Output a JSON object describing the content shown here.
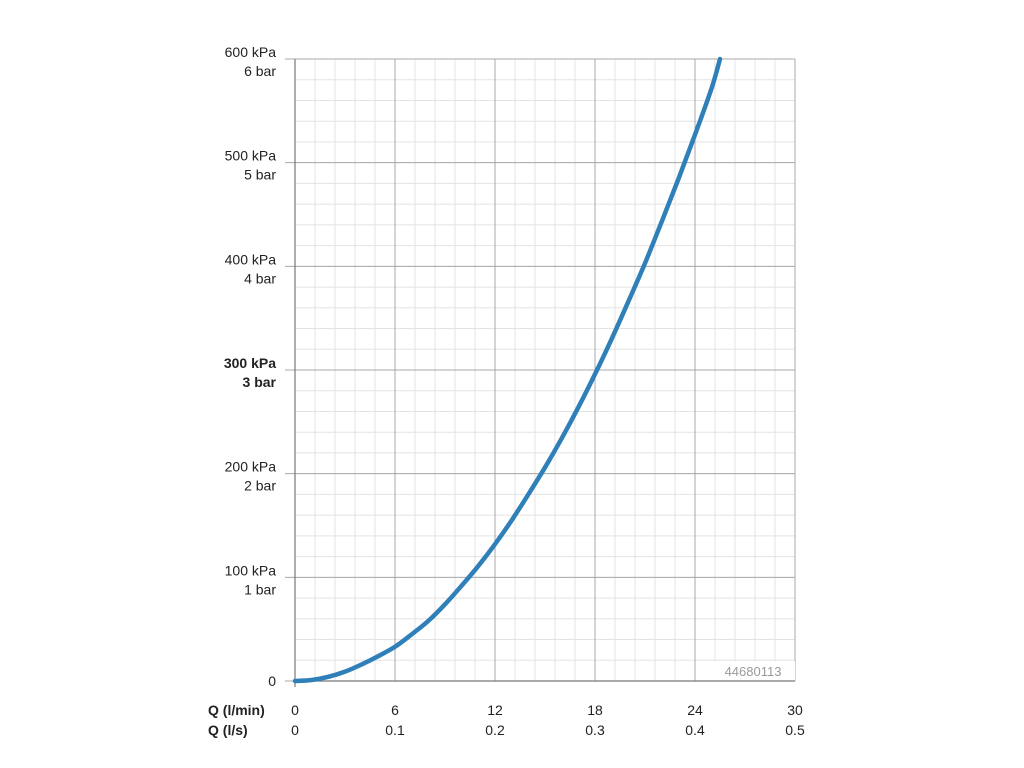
{
  "chart_data": {
    "type": "line",
    "x_axis": {
      "title_primary": "Q (l/min)",
      "title_secondary": "Q (l/s)",
      "ticks": [
        {
          "value": 0,
          "label_primary": "0",
          "label_secondary": "0"
        },
        {
          "value": 6,
          "label_primary": "6",
          "label_secondary": "0.1"
        },
        {
          "value": 12,
          "label_primary": "12",
          "label_secondary": "0.2"
        },
        {
          "value": 18,
          "label_primary": "18",
          "label_secondary": "0.3"
        },
        {
          "value": 24,
          "label_primary": "24",
          "label_secondary": "0.4"
        },
        {
          "value": 30,
          "label_primary": "30",
          "label_secondary": "0.5"
        }
      ],
      "range": [
        0,
        30
      ],
      "minor_step": 1.2
    },
    "y_axis": {
      "ticks": [
        {
          "value": 0,
          "label_primary": "0",
          "label_secondary": "",
          "bold": false
        },
        {
          "value": 100,
          "label_primary": "100 kPa",
          "label_secondary": "1 bar",
          "bold": false
        },
        {
          "value": 200,
          "label_primary": "200 kPa",
          "label_secondary": "2 bar",
          "bold": false
        },
        {
          "value": 300,
          "label_primary": "300 kPa",
          "label_secondary": "3 bar",
          "bold": true
        },
        {
          "value": 400,
          "label_primary": "400 kPa",
          "label_secondary": "4 bar",
          "bold": false
        },
        {
          "value": 500,
          "label_primary": "500 kPa",
          "label_secondary": "5 bar",
          "bold": false
        },
        {
          "value": 600,
          "label_primary": "600 kPa",
          "label_secondary": "6 bar",
          "bold": false
        }
      ],
      "range": [
        0,
        600
      ],
      "minor_step": 20
    },
    "grid": true,
    "series": [
      {
        "color": "#2f7fb8",
        "x": [
          0,
          1,
          2,
          3,
          4,
          5,
          6,
          7,
          8,
          9,
          10,
          11,
          12,
          13,
          14,
          15,
          16,
          17,
          18,
          19,
          20,
          21,
          22,
          23,
          24,
          25,
          25.5
        ],
        "y": [
          0,
          1,
          4,
          9,
          16,
          24,
          33,
          45,
          58,
          74,
          92,
          111,
          132,
          155,
          180,
          206,
          234,
          264,
          296,
          330,
          366,
          403,
          443,
          484,
          527,
          572,
          600
        ]
      }
    ],
    "annotation": "44680113"
  }
}
